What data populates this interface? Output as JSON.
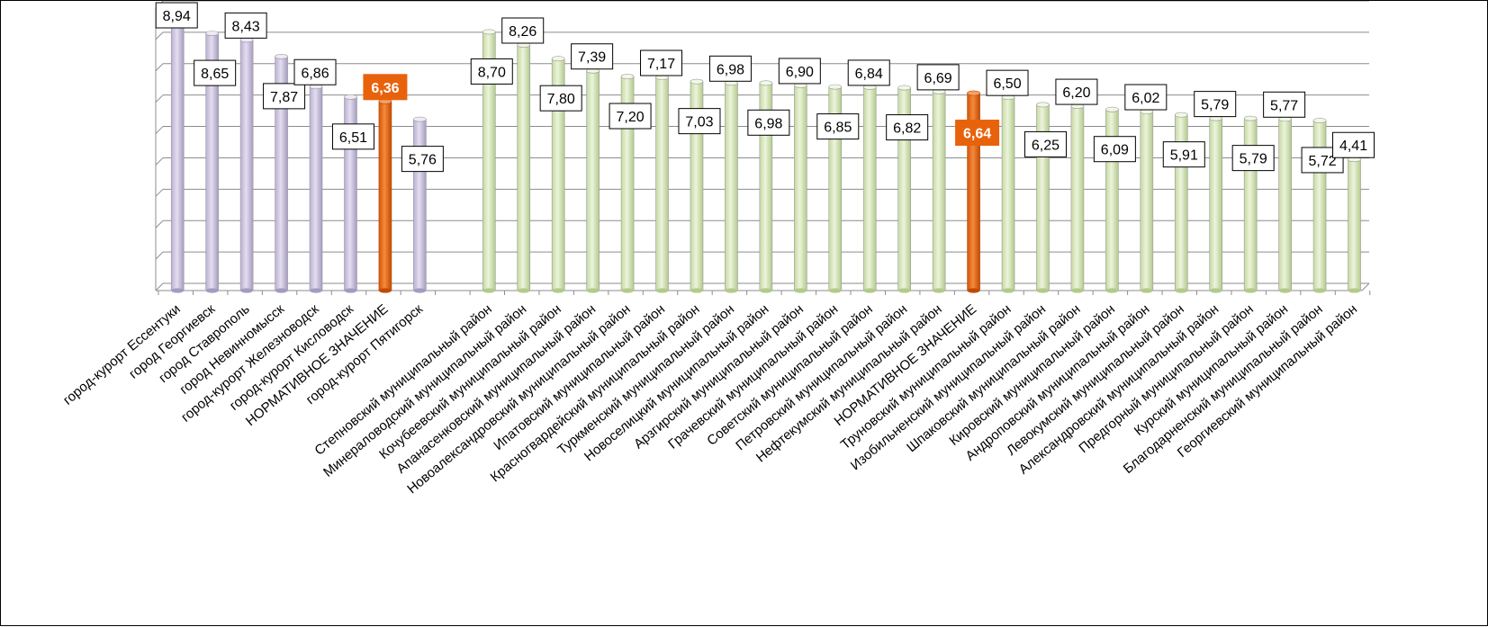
{
  "chart_data": {
    "type": "bar",
    "title": "",
    "xlabel": "",
    "ylabel": "",
    "ylim": [
      0,
      9.5
    ],
    "grid": true,
    "legend": "none",
    "colors": {
      "city": "#cbc3dd",
      "district": "#d6e6b8",
      "norm": "#e8620c"
    },
    "groups": [
      {
        "name": "cities",
        "items": [
          {
            "category": "город-курорт Ессентуки",
            "value": 8.94,
            "label": "8,94",
            "kind": "city"
          },
          {
            "category": "город Георгиевск",
            "value": 8.65,
            "label": "8,65",
            "kind": "city"
          },
          {
            "category": "город Ставрополь",
            "value": 8.43,
            "label": "8,43",
            "kind": "city"
          },
          {
            "category": "город Невинномысск",
            "value": 7.87,
            "label": "7,87",
            "kind": "city"
          },
          {
            "category": "город-курорт Железноводск",
            "value": 6.86,
            "label": "6,86",
            "kind": "city"
          },
          {
            "category": "город-курорт Кисловодск",
            "value": 6.51,
            "label": "6,51",
            "kind": "city"
          },
          {
            "category": "НОРМАТИВНОЕ ЗНАЧЕНИЕ",
            "value": 6.36,
            "label": "6,36",
            "kind": "norm"
          },
          {
            "category": "город-курорт Пятигорск",
            "value": 5.76,
            "label": "5,76",
            "kind": "city"
          }
        ]
      },
      {
        "name": "districts",
        "items": [
          {
            "category": "Степновский муниципальный район",
            "value": 8.7,
            "label": "8,70",
            "kind": "district"
          },
          {
            "category": "Минераловодский муниципальный район",
            "value": 8.26,
            "label": "8,26",
            "kind": "district"
          },
          {
            "category": "Кочубеевский муниципальный район",
            "value": 7.8,
            "label": "7,80",
            "kind": "district"
          },
          {
            "category": "Апанасенковский муниципальный район",
            "value": 7.39,
            "label": "7,39",
            "kind": "district"
          },
          {
            "category": "Новоалександровский муниципальный район",
            "value": 7.2,
            "label": "7,20",
            "kind": "district"
          },
          {
            "category": "Ипатовский муниципальный район",
            "value": 7.17,
            "label": "7,17",
            "kind": "district"
          },
          {
            "category": "Красногвардейский муниципальный район",
            "value": 7.03,
            "label": "7,03",
            "kind": "district"
          },
          {
            "category": "Туркменский муниципальный район",
            "value": 6.98,
            "label": "6,98",
            "kind": "district"
          },
          {
            "category": "Новоселицкий муниципальный район",
            "value": 6.98,
            "label": "6,98",
            "kind": "district"
          },
          {
            "category": "Арзгирский муниципальный район",
            "value": 6.9,
            "label": "6,90",
            "kind": "district"
          },
          {
            "category": "Грачевский муниципальный район",
            "value": 6.85,
            "label": "6,85",
            "kind": "district"
          },
          {
            "category": "Советский муниципальный район",
            "value": 6.84,
            "label": "6,84",
            "kind": "district"
          },
          {
            "category": "Петровский муниципальный район",
            "value": 6.82,
            "label": "6,82",
            "kind": "district"
          },
          {
            "category": "Нефтекумский муниципальный район",
            "value": 6.69,
            "label": "6,69",
            "kind": "district"
          },
          {
            "category": "НОРМАТИВНОЕ ЗНАЧЕНИЕ",
            "value": 6.64,
            "label": "6,64",
            "kind": "norm"
          },
          {
            "category": "Труновский муниципальный район",
            "value": 6.5,
            "label": "6,50",
            "kind": "district"
          },
          {
            "category": "Изобильненский муниципальный район",
            "value": 6.25,
            "label": "6,25",
            "kind": "district"
          },
          {
            "category": "Шпаковский муниципальный район",
            "value": 6.2,
            "label": "6,20",
            "kind": "district"
          },
          {
            "category": "Кировский муниципальный район",
            "value": 6.09,
            "label": "6,09",
            "kind": "district"
          },
          {
            "category": "Андроповский муниципальный район",
            "value": 6.02,
            "label": "6,02",
            "kind": "district"
          },
          {
            "category": "Левокумский муниципальный район",
            "value": 5.91,
            "label": "5,91",
            "kind": "district"
          },
          {
            "category": "Александровский муниципальный район",
            "value": 5.79,
            "label": "5,79",
            "kind": "district"
          },
          {
            "category": "Предгорный муниципальный район",
            "value": 5.79,
            "label": "5,79",
            "kind": "district"
          },
          {
            "category": "Курский муниципальный район",
            "value": 5.77,
            "label": "5,77",
            "kind": "district"
          },
          {
            "category": "Благодарненский муниципальный район",
            "value": 5.72,
            "label": "5,72",
            "kind": "district"
          },
          {
            "category": "Георгиевский муниципальный район",
            "value": 4.41,
            "label": "4,41",
            "kind": "district"
          }
        ]
      }
    ]
  }
}
